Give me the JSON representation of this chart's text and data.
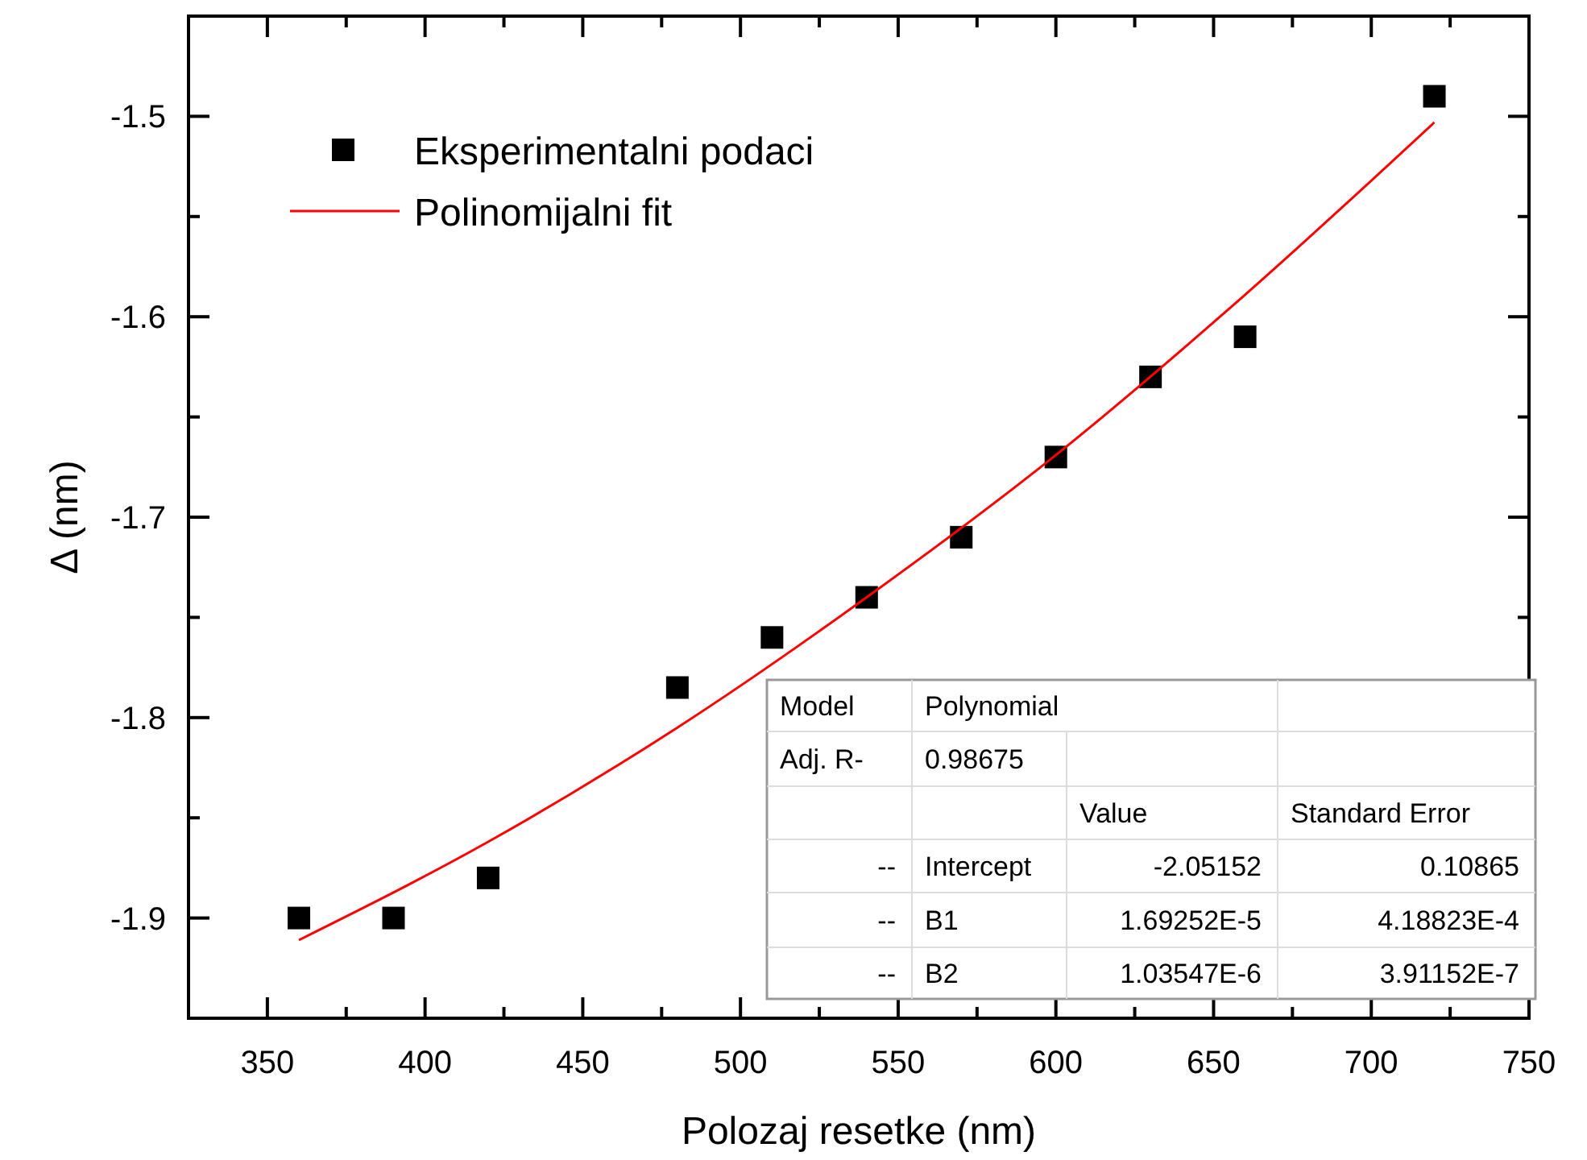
{
  "chart_data": {
    "type": "scatter",
    "xlabel": "Polozaj resetke (nm)",
    "ylabel": "Δ (nm)",
    "xlim": [
      325,
      750
    ],
    "ylim": [
      -1.95,
      -1.45
    ],
    "xticks": [
      350,
      {
        "value": 375,
        "label": null
      },
      400,
      {
        "value": 425,
        "label": null
      },
      450,
      {
        "value": 475,
        "label": null
      },
      500,
      {
        "value": 525,
        "label": null
      },
      550,
      {
        "value": 575,
        "label": null
      },
      600,
      {
        "value": 625,
        "label": null
      },
      650,
      {
        "value": 675,
        "label": null
      },
      700,
      {
        "value": 725,
        "label": null
      },
      750
    ],
    "yticks": [
      {
        "value": -1.9,
        "label": "-1.9"
      },
      {
        "value": -1.85,
        "label": null
      },
      {
        "value": -1.8,
        "label": "-1.8"
      },
      {
        "value": -1.75,
        "label": null
      },
      {
        "value": -1.7,
        "label": "-1.7"
      },
      {
        "value": -1.65,
        "label": null
      },
      {
        "value": -1.6,
        "label": "-1.6"
      },
      {
        "value": -1.55,
        "label": null
      },
      {
        "value": -1.5,
        "label": "-1.5"
      }
    ],
    "grid": false,
    "legend": "top left",
    "series": [
      {
        "name": "Eksperimentalni podaci",
        "marker": "square",
        "color": "#000000",
        "x": [
          360,
          390,
          420,
          480,
          510,
          540,
          570,
          600,
          630,
          660,
          720
        ],
        "values": [
          -1.9,
          -1.9,
          -1.88,
          -1.785,
          -1.76,
          -1.74,
          -1.71,
          -1.67,
          -1.63,
          -1.61,
          -1.49
        ]
      },
      {
        "name": "Polinomijalni fit",
        "type": "line",
        "marker": "none",
        "line_style": "solid",
        "color": "#ff0000",
        "x": [
          360,
          420,
          480,
          540,
          600,
          660,
          720
        ],
        "values": [
          -1.911,
          -1.862,
          -1.805,
          -1.74,
          -1.669,
          -1.589,
          -1.503
        ]
      }
    ],
    "annotations": [
      "Model",
      "Polynomial",
      "Adj. R-",
      "0.98675",
      "Value",
      "Standard Error",
      "--",
      "Intercept",
      "-2.05152",
      "0.10865",
      "--",
      "B1",
      "1.69252E-5",
      "4.18823E-4",
      "--",
      "B2",
      "1.03547E-6",
      "3.91152E-7"
    ]
  }
}
